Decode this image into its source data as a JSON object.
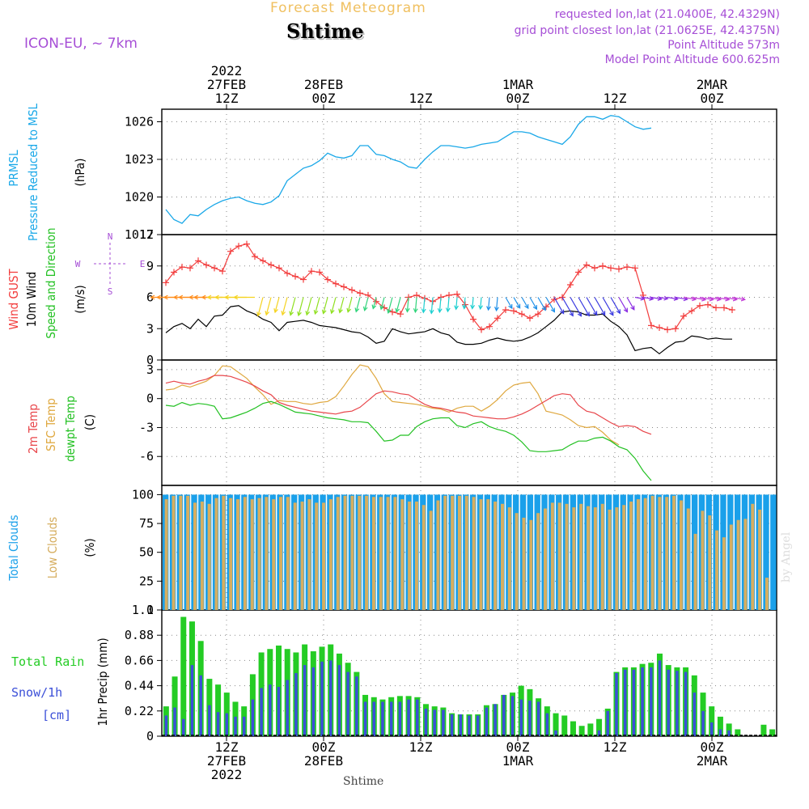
{
  "header": {
    "title": "Forecast Meteogram",
    "place": "Shtime",
    "model": "ICON-EU, ~ 7km",
    "requested": "requested lon,lat (21.0400E, 42.4329N)",
    "grid_point": "grid point closest lon,lat (21.0625E, 42.4375N)",
    "point_altitude": "Point Altitude 573m",
    "model_altitude": "Model Point Altitude 600.625m",
    "credit": "by Angel",
    "footer_place": "Shtime"
  },
  "time_axis": {
    "start": "2022-02-27 04Z",
    "step_hours": 1,
    "count": 64,
    "ticks": [
      {
        "hour": 8,
        "top": [
          "2022",
          "27FEB",
          "12Z"
        ],
        "bottom": [
          "12Z",
          "27FEB",
          "2022"
        ]
      },
      {
        "hour": 20,
        "top": [
          "28FEB",
          "00Z"
        ],
        "bottom": [
          "00Z",
          "28FEB"
        ]
      },
      {
        "hour": 32,
        "top": [
          "12Z"
        ],
        "bottom": [
          "12Z"
        ]
      },
      {
        "hour": 44,
        "top": [
          "1MAR",
          "00Z"
        ],
        "bottom": [
          "00Z",
          "1MAR"
        ]
      },
      {
        "hour": 56,
        "top": [
          "12Z"
        ],
        "bottom": [
          "12Z"
        ]
      },
      {
        "hour": 68,
        "top": [
          "2MAR",
          "00Z"
        ],
        "bottom": [
          "00Z",
          "2MAR"
        ]
      }
    ]
  },
  "colors": {
    "pressure": "#1aa8e8",
    "gust": "#f23c3c",
    "wind": "#000000",
    "t2m": "#e8454a",
    "sfc": "#dfa83f",
    "dewpt": "#23c123",
    "total_clouds": "#1aa0ea",
    "low_clouds": "#d6ae60",
    "rain": "#24cc24",
    "snow": "#3b4fd8",
    "purple": "#a64ed6"
  },
  "chart_data": [
    {
      "type": "line",
      "id": "pressure",
      "ylabel_lines": [
        "PRMSL",
        "Pressure Reduced to MSL",
        "(hPa)"
      ],
      "ylim": [
        1017,
        1027
      ],
      "yticks": [
        1017,
        1020,
        1023,
        1026
      ],
      "ytick_labels": [
        "1017",
        "1020",
        "1023",
        "1026"
      ],
      "series": [
        {
          "name": "PRMSL",
          "values": [
            1019.0,
            1018.2,
            1017.9,
            1018.6,
            1018.5,
            1019.0,
            1019.4,
            1019.7,
            1019.9,
            1020.0,
            1019.7,
            1019.5,
            1019.4,
            1019.6,
            1020.1,
            1021.3,
            1021.8,
            1022.3,
            1022.5,
            1022.9,
            1023.5,
            1023.2,
            1023.1,
            1023.3,
            1024.1,
            1024.1,
            1023.4,
            1023.3,
            1023.0,
            1022.8,
            1022.4,
            1022.3,
            1023.0,
            1023.6,
            1024.1,
            1024.1,
            1024.0,
            1023.9,
            1024.0,
            1024.2,
            1024.3,
            1024.4,
            1024.8,
            1025.2,
            1025.2,
            1025.1,
            1024.8,
            1024.6,
            1024.4,
            1024.2,
            1024.8,
            1025.8,
            1026.4,
            1026.4,
            1026.2,
            1026.5,
            1026.4,
            1026.0,
            1025.6,
            1025.4,
            1025.5
          ]
        }
      ]
    },
    {
      "type": "line",
      "id": "wind",
      "ylabel_lines": [
        "Wind GUST",
        "10m Wind",
        "Speed and Direction",
        "(m/s)"
      ],
      "compass": {
        "n": "N",
        "w": "W",
        "e": "E",
        "s": "S"
      },
      "ylim": [
        0,
        12
      ],
      "yticks": [
        0,
        3,
        6,
        9,
        12
      ],
      "ytick_labels": [
        "0",
        "3",
        "6",
        "9",
        "12"
      ],
      "series": [
        {
          "name": "Wind GUST",
          "values": [
            7.4,
            8.4,
            8.9,
            8.8,
            9.5,
            9.1,
            8.8,
            8.5,
            10.4,
            10.9,
            11.1,
            9.9,
            9.5,
            9.1,
            8.8,
            8.3,
            8.0,
            7.7,
            8.5,
            8.4,
            7.7,
            7.3,
            7.0,
            6.7,
            6.4,
            6.2,
            5.6,
            5.0,
            4.6,
            4.4,
            6.0,
            6.2,
            5.9,
            5.6,
            6.0,
            6.2,
            6.3,
            5.3,
            3.9,
            2.9,
            3.2,
            4.0,
            4.8,
            4.7,
            4.4,
            4.0,
            4.4,
            5.1,
            5.8,
            6.0,
            7.2,
            8.4,
            9.1,
            8.8,
            9.0,
            8.8,
            8.7,
            8.9,
            8.8,
            6.2,
            3.3,
            3.1,
            2.9,
            3.0,
            4.2,
            4.7,
            5.2,
            5.3,
            5.0,
            5.0,
            4.8
          ]
        },
        {
          "name": "10m Wind",
          "values": [
            2.6,
            3.2,
            3.5,
            3.0,
            3.9,
            3.2,
            4.2,
            4.3,
            5.1,
            5.2,
            4.7,
            4.4,
            3.9,
            3.6,
            2.8,
            3.6,
            3.7,
            3.8,
            3.6,
            3.3,
            3.2,
            3.1,
            2.9,
            2.7,
            2.6,
            2.2,
            1.6,
            1.8,
            3.0,
            2.7,
            2.5,
            2.6,
            2.7,
            3.0,
            2.6,
            2.4,
            1.7,
            1.5,
            1.5,
            1.6,
            1.9,
            2.1,
            1.9,
            1.8,
            1.9,
            2.2,
            2.6,
            3.2,
            3.8,
            4.6,
            4.7,
            4.6,
            4.3,
            4.3,
            4.4,
            3.7,
            3.2,
            2.4,
            0.9,
            1.1,
            1.2,
            0.6,
            1.2,
            1.7,
            1.8,
            2.3,
            2.2,
            2.0,
            2.1,
            2.0,
            2.0
          ]
        }
      ]
    },
    {
      "type": "line",
      "id": "temperature",
      "ylabel_lines": [
        "2m Temp",
        "SFC Temp",
        "dewpt Temp",
        "(C)"
      ],
      "ylim": [
        -9,
        4
      ],
      "yticks": [
        -6,
        -3,
        0,
        3
      ],
      "ytick_labels": [
        "-6",
        "-3",
        "0",
        "3"
      ],
      "series": [
        {
          "name": "2m Temp",
          "values": [
            1.6,
            1.8,
            1.6,
            1.5,
            1.8,
            2.0,
            2.4,
            2.4,
            2.3,
            2.0,
            1.7,
            1.3,
            0.8,
            0.4,
            -0.4,
            -0.7,
            -0.9,
            -1.1,
            -1.3,
            -1.4,
            -1.5,
            -1.6,
            -1.4,
            -1.3,
            -0.9,
            -0.2,
            0.5,
            0.8,
            0.7,
            0.5,
            0.4,
            -0.1,
            -0.6,
            -0.9,
            -1.0,
            -1.2,
            -1.4,
            -1.5,
            -1.8,
            -1.9,
            -2.0,
            -2.1,
            -2.1,
            -1.9,
            -1.6,
            -1.2,
            -0.7,
            -0.2,
            0.3,
            0.5,
            0.4,
            -0.7,
            -1.3,
            -1.5,
            -2.0,
            -2.5,
            -2.9,
            -2.8,
            -2.9,
            -3.4,
            -3.7
          ]
        },
        {
          "name": "SFC Temp",
          "values": [
            0.9,
            1.0,
            1.4,
            1.2,
            1.5,
            1.8,
            2.4,
            3.4,
            3.3,
            2.7,
            2.1,
            1.2,
            0.4,
            -0.6,
            -0.2,
            -0.3,
            -0.3,
            -0.5,
            -0.6,
            -0.4,
            -0.3,
            0.2,
            1.3,
            2.5,
            3.5,
            3.3,
            2.1,
            0.5,
            -0.3,
            -0.4,
            -0.5,
            -0.6,
            -0.8,
            -1.0,
            -1.1,
            -1.4,
            -1.0,
            -0.8,
            -0.8,
            -1.3,
            -0.8,
            -0.1,
            0.8,
            1.4,
            1.6,
            1.7,
            0.5,
            -1.3,
            -1.5,
            -1.7,
            -2.2,
            -2.8,
            -3.0,
            -2.9,
            -3.5,
            -4.3,
            -4.8
          ]
        },
        {
          "name": "dewpt Temp",
          "values": [
            -0.7,
            -0.8,
            -0.4,
            -0.7,
            -0.5,
            -0.6,
            -0.8,
            -2.1,
            -2.0,
            -1.7,
            -1.4,
            -1.0,
            -0.5,
            -0.3,
            -0.6,
            -1.0,
            -1.4,
            -1.5,
            -1.6,
            -1.8,
            -2.0,
            -2.1,
            -2.2,
            -2.4,
            -2.4,
            -2.5,
            -3.4,
            -4.4,
            -4.3,
            -3.8,
            -3.8,
            -2.9,
            -2.4,
            -2.1,
            -2.0,
            -2.0,
            -2.8,
            -3.0,
            -2.6,
            -2.4,
            -2.9,
            -3.2,
            -3.4,
            -3.8,
            -4.5,
            -5.4,
            -5.5,
            -5.5,
            -5.4,
            -5.3,
            -4.8,
            -4.4,
            -4.4,
            -4.1,
            -4.0,
            -4.4,
            -5.0,
            -5.3,
            -6.2,
            -7.5,
            -8.5
          ]
        }
      ]
    },
    {
      "type": "bar",
      "id": "clouds",
      "ylabel_lines": [
        "Total Clouds",
        "Low Clouds",
        "(%)"
      ],
      "ylim": [
        0,
        100
      ],
      "yticks": [
        0,
        25,
        50,
        75,
        100
      ],
      "ytick_labels": [
        "0",
        "25",
        "50",
        "75",
        "100"
      ],
      "series": [
        {
          "name": "Total Clouds",
          "values": [
            100,
            100,
            100,
            100,
            100,
            100,
            100,
            100,
            100,
            100,
            100,
            100,
            100,
            100,
            100,
            100,
            100,
            100,
            100,
            100,
            100,
            100,
            100,
            100,
            100,
            100,
            100,
            100,
            100,
            100,
            100,
            100,
            100,
            100,
            100,
            100,
            100,
            100,
            100,
            100,
            100,
            100,
            100,
            100,
            100,
            100,
            100,
            100,
            100,
            100,
            100,
            100,
            100,
            100,
            100,
            100,
            100,
            100,
            100,
            100,
            100,
            100,
            100,
            100,
            100,
            100,
            100,
            100,
            100,
            100,
            100,
            100,
            100,
            100,
            100,
            100,
            100,
            100,
            100,
            100,
            100,
            100,
            100,
            100,
            100,
            100,
            100,
            100,
            100,
            100,
            100,
            100,
            100,
            93,
            88,
            92,
            98,
            94,
            96,
            99,
            98,
            100,
            99,
            100,
            98,
            100,
            100,
            100,
            100,
            100,
            100,
            100,
            100,
            100,
            100,
            100,
            100,
            100,
            100,
            100,
            100,
            100,
            100,
            100,
            100,
            100,
            100,
            100,
            100,
            100,
            100,
            100,
            100,
            100,
            100,
            100,
            100,
            100,
            100,
            100,
            100,
            100,
            100,
            100,
            100,
            100,
            100,
            100,
            100,
            100,
            100,
            100,
            100,
            100,
            100,
            100,
            100,
            100,
            92,
            87,
            84,
            99,
            92,
            82,
            93,
            92,
            97,
            97,
            96,
            92,
            83,
            81,
            0,
            0,
            0,
            0
          ]
        },
        {
          "name": "Low Clouds",
          "values": [
            96,
            99,
            99,
            99,
            93,
            94,
            92,
            97,
            99,
            97,
            96,
            98,
            96,
            97,
            98,
            96,
            98,
            98,
            93,
            94,
            96,
            93,
            93,
            96,
            98,
            99,
            99,
            99,
            99,
            98,
            98,
            98,
            98,
            96,
            94,
            94,
            91,
            86,
            95,
            99,
            99,
            99,
            99,
            98,
            96,
            96,
            94,
            92,
            89,
            84,
            80,
            78,
            84,
            88,
            93,
            93,
            92,
            89,
            92,
            90,
            89,
            92,
            87,
            89,
            91,
            94,
            96,
            97,
            99,
            98,
            98,
            99,
            95,
            88,
            66,
            86,
            82,
            69,
            63,
            74,
            78,
            79,
            92,
            87,
            28,
            0,
            0
          ]
        }
      ]
    },
    {
      "type": "bar",
      "id": "precip",
      "ylabel_lines": [
        "1hr Precip (mm)"
      ],
      "left_labels": [
        "Total  Rain",
        "Snow/1h",
        "[cm]"
      ],
      "ylim": [
        0,
        1.1
      ],
      "yticks": [
        0,
        0.22,
        0.44,
        0.66,
        0.88,
        1.1
      ],
      "ytick_labels": [
        "0",
        "0.22",
        "0.44",
        "0.66",
        "0.88",
        "1.1"
      ],
      "series": [
        {
          "name": "Total Rain",
          "values": [
            0.26,
            0.52,
            1.04,
            1.0,
            0.83,
            0.5,
            0.45,
            0.38,
            0.3,
            0.26,
            0.54,
            0.73,
            0.76,
            0.79,
            0.76,
            0.73,
            0.8,
            0.74,
            0.78,
            0.8,
            0.72,
            0.64,
            0.56,
            0.36,
            0.34,
            0.32,
            0.34,
            0.35,
            0.35,
            0.34,
            0.28,
            0.26,
            0.25,
            0.2,
            0.19,
            0.19,
            0.19,
            0.27,
            0.28,
            0.36,
            0.38,
            0.44,
            0.41,
            0.33,
            0.26,
            0.2,
            0.18,
            0.13,
            0.09,
            0.11,
            0.15,
            0.24,
            0.56,
            0.6,
            0.6,
            0.63,
            0.64,
            0.72,
            0.62,
            0.6,
            0.6,
            0.53,
            0.38,
            0.26,
            0.17,
            0.11,
            0.06,
            0.0,
            0.0,
            0.1,
            0.06
          ]
        },
        {
          "name": "Snow/1h",
          "values": [
            0.18,
            0.25,
            0.15,
            0.62,
            0.53,
            0.27,
            0.21,
            0.2,
            0.17,
            0.17,
            0.32,
            0.42,
            0.45,
            0.43,
            0.49,
            0.55,
            0.62,
            0.6,
            0.65,
            0.66,
            0.62,
            0.56,
            0.52,
            0.3,
            0.3,
            0.3,
            0.3,
            0.3,
            0.32,
            0.32,
            0.24,
            0.23,
            0.23,
            0.19,
            0.19,
            0.18,
            0.18,
            0.25,
            0.28,
            0.36,
            0.35,
            0.32,
            0.31,
            0.3,
            0.2,
            0.05,
            0.0,
            0.0,
            0.0,
            0.0,
            0.05,
            0.22,
            0.55,
            0.58,
            0.58,
            0.6,
            0.6,
            0.66,
            0.58,
            0.57,
            0.56,
            0.38,
            0.22,
            0.12,
            0.06,
            0.05,
            0.0,
            0.0,
            0.0,
            0.0,
            0.0
          ]
        }
      ]
    }
  ]
}
